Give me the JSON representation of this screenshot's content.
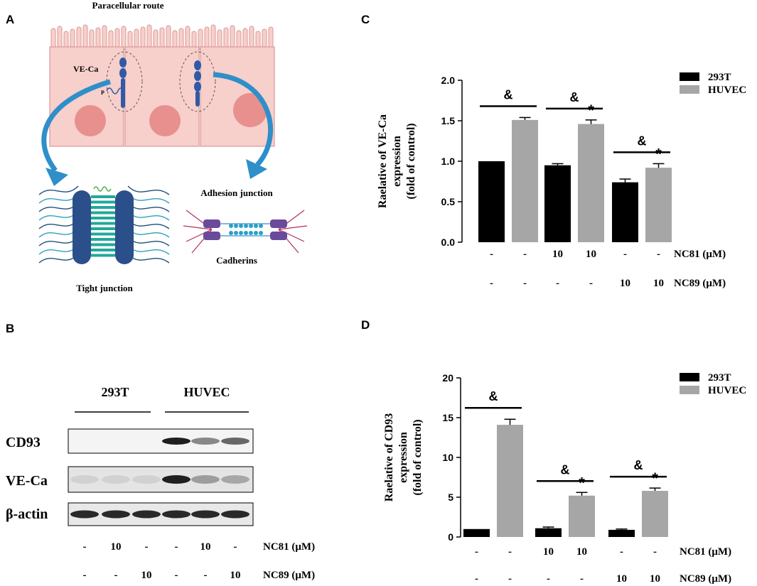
{
  "panels": {
    "a": {
      "label": "A",
      "title": "Paracellular route",
      "vec_label": "VE-Ca",
      "p_label": "P",
      "adhesion_label": "Adhesion junction",
      "cadherins_label": "Cadherins",
      "tight_label": "Tight junction"
    },
    "b": {
      "label": "B"
    },
    "c": {
      "label": "C"
    },
    "d": {
      "label": "D"
    }
  },
  "blot": {
    "group_labels": [
      "293T",
      "HUVEC"
    ],
    "row_labels": [
      "CD93",
      "VE-Ca",
      "β-actin"
    ],
    "nc81_values": [
      "-",
      "10",
      "-",
      "-",
      "10",
      "-"
    ],
    "nc89_values": [
      "-",
      "-",
      "10",
      "-",
      "-",
      "10"
    ],
    "nc81_label": "NC81 (μM)",
    "nc89_label": "NC89 (μM)",
    "band_intensity": {
      "CD93": [
        0,
        0,
        0,
        0.95,
        0.45,
        0.6
      ],
      "VE-Ca": [
        0.1,
        0.1,
        0.1,
        0.95,
        0.35,
        0.3
      ],
      "β-actin": [
        0.9,
        0.9,
        0.9,
        0.9,
        0.9,
        0.9
      ]
    }
  },
  "colors": {
    "series_293t": "#000000",
    "series_huvec": "#a6a6a6",
    "cell_fill": "#f7cfcb",
    "nucleus": "#e8908e",
    "junction": "#2f5aa8"
  },
  "chart_data": [
    {
      "id": "C",
      "type": "bar",
      "ylabel": [
        "Raelative of VE-Ca",
        "expression",
        "(fold of control)"
      ],
      "ylim": [
        0,
        2.0
      ],
      "yticks": [
        "0.0",
        "0.5",
        "1.0",
        "1.5",
        "2.0"
      ],
      "legend_position": "top-right",
      "series": [
        {
          "name": "293T",
          "color": "#000000",
          "values": [
            1.0,
            0.95,
            0.74
          ],
          "errors": [
            0,
            0.02,
            0.04
          ]
        },
        {
          "name": "HUVEC",
          "color": "#a6a6a6",
          "values": [
            1.51,
            1.46,
            0.92
          ],
          "errors": [
            0.03,
            0.05,
            0.05
          ]
        }
      ],
      "significance_groups": [
        "&",
        "&",
        "&"
      ],
      "star_marks": [
        "",
        "*",
        "*"
      ],
      "nc81_values": [
        "-",
        "-",
        "10",
        "10",
        "-",
        "-"
      ],
      "nc89_values": [
        "-",
        "-",
        "-",
        "-",
        "10",
        "10"
      ],
      "nc81_label": "NC81 (μM)",
      "nc89_label": "NC89 (μM)"
    },
    {
      "id": "D",
      "type": "bar",
      "ylabel": [
        "Raelative of CD93",
        "expression",
        "(fold of control)"
      ],
      "ylim": [
        0,
        20
      ],
      "yticks": [
        "0",
        "5",
        "10",
        "15",
        "20"
      ],
      "legend_position": "top-right",
      "series": [
        {
          "name": "293T",
          "color": "#000000",
          "values": [
            1.0,
            1.1,
            0.9
          ],
          "errors": [
            0,
            0.15,
            0.1
          ]
        },
        {
          "name": "HUVEC",
          "color": "#a6a6a6",
          "values": [
            14.1,
            5.2,
            5.8
          ],
          "errors": [
            0.7,
            0.4,
            0.35
          ]
        }
      ],
      "significance_groups": [
        "&",
        "&",
        "&"
      ],
      "star_marks": [
        "",
        "*",
        "*"
      ],
      "nc81_values": [
        "-",
        "-",
        "10",
        "10",
        "-",
        "-"
      ],
      "nc89_values": [
        "-",
        "-",
        "-",
        "-",
        "10",
        "10"
      ],
      "nc81_label": "NC81 (μM)",
      "nc89_label": "NC89 (μM)"
    }
  ]
}
